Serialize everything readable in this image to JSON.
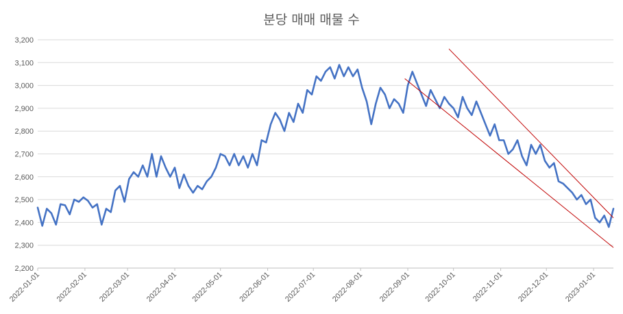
{
  "chart_data": {
    "type": "line",
    "title": "분당 매매 매물 수",
    "xlabel": "",
    "ylabel": "",
    "ylim": [
      2200,
      3200
    ],
    "yticks": [
      2200,
      2300,
      2400,
      2500,
      2600,
      2700,
      2800,
      2900,
      3000,
      3100,
      3200
    ],
    "ytick_labels": [
      "2,200",
      "2,300",
      "2,400",
      "2,500",
      "2,600",
      "2,700",
      "2,800",
      "2,900",
      "3,000",
      "3,100",
      "3,200"
    ],
    "x_start": "2022-01-01",
    "x_end": "2023-01-14",
    "xtick_labels": [
      "2022-01-01",
      "2022-02-01",
      "2022-03-01",
      "2022-04-01",
      "2022-05-01",
      "2022-06-01",
      "2022-07-01",
      "2022-08-01",
      "2022-09-01",
      "2022-10-01",
      "2022-11-01",
      "2022-12-01",
      "2023-01-01"
    ],
    "grid": true,
    "legend": "none",
    "series_color": "#4472C4",
    "trendline_color": "#C00000",
    "series": [
      {
        "x": [
          "2022-01-01",
          "2022-01-04",
          "2022-01-07",
          "2022-01-10",
          "2022-01-13",
          "2022-01-16",
          "2022-01-19",
          "2022-01-22",
          "2022-01-25",
          "2022-01-28",
          "2022-01-31",
          "2022-02-03",
          "2022-02-06",
          "2022-02-09",
          "2022-02-12",
          "2022-02-15",
          "2022-02-18",
          "2022-02-21",
          "2022-02-24",
          "2022-02-27",
          "2022-03-02",
          "2022-03-05",
          "2022-03-08",
          "2022-03-11",
          "2022-03-14",
          "2022-03-17",
          "2022-03-20",
          "2022-03-23",
          "2022-03-26",
          "2022-03-29",
          "2022-04-01",
          "2022-04-04",
          "2022-04-07",
          "2022-04-10",
          "2022-04-13",
          "2022-04-16",
          "2022-04-19",
          "2022-04-22",
          "2022-04-25",
          "2022-04-28",
          "2022-05-01",
          "2022-05-04",
          "2022-05-07",
          "2022-05-10",
          "2022-05-13",
          "2022-05-16",
          "2022-05-19",
          "2022-05-22",
          "2022-05-25",
          "2022-05-28",
          "2022-05-31",
          "2022-06-03",
          "2022-06-06",
          "2022-06-09",
          "2022-06-12",
          "2022-06-15",
          "2022-06-18",
          "2022-06-21",
          "2022-06-24",
          "2022-06-27",
          "2022-06-30",
          "2022-07-03",
          "2022-07-06",
          "2022-07-09",
          "2022-07-12",
          "2022-07-15",
          "2022-07-18",
          "2022-07-21",
          "2022-07-24",
          "2022-07-27",
          "2022-07-30",
          "2022-08-02",
          "2022-08-05",
          "2022-08-08",
          "2022-08-11",
          "2022-08-14",
          "2022-08-17",
          "2022-08-20",
          "2022-08-23",
          "2022-08-26",
          "2022-08-29",
          "2022-09-01",
          "2022-09-04",
          "2022-09-07",
          "2022-09-10",
          "2022-09-13",
          "2022-09-16",
          "2022-09-19",
          "2022-09-22",
          "2022-09-25",
          "2022-09-28",
          "2022-10-01",
          "2022-10-04",
          "2022-10-07",
          "2022-10-10",
          "2022-10-13",
          "2022-10-16",
          "2022-10-19",
          "2022-10-22",
          "2022-10-25",
          "2022-10-28",
          "2022-10-31",
          "2022-11-03",
          "2022-11-06",
          "2022-11-09",
          "2022-11-12",
          "2022-11-15",
          "2022-11-18",
          "2022-11-21",
          "2022-11-24",
          "2022-11-27",
          "2022-11-30",
          "2022-12-03",
          "2022-12-06",
          "2022-12-09",
          "2022-12-12",
          "2022-12-15",
          "2022-12-18",
          "2022-12-21",
          "2022-12-24",
          "2022-12-27",
          "2022-12-30",
          "2023-01-02",
          "2023-01-05",
          "2023-01-08",
          "2023-01-11",
          "2023-01-14"
        ],
        "values": [
          2465,
          2385,
          2460,
          2440,
          2390,
          2480,
          2475,
          2435,
          2500,
          2490,
          2510,
          2495,
          2465,
          2480,
          2390,
          2460,
          2445,
          2540,
          2560,
          2490,
          2590,
          2620,
          2600,
          2650,
          2600,
          2700,
          2600,
          2690,
          2640,
          2600,
          2640,
          2550,
          2610,
          2560,
          2530,
          2560,
          2545,
          2580,
          2600,
          2640,
          2700,
          2690,
          2650,
          2700,
          2650,
          2690,
          2640,
          2700,
          2650,
          2760,
          2750,
          2830,
          2880,
          2850,
          2800,
          2880,
          2840,
          2920,
          2880,
          2980,
          2960,
          3040,
          3020,
          3060,
          3080,
          3030,
          3090,
          3040,
          3080,
          3040,
          3070,
          2990,
          2930,
          2830,
          2920,
          2990,
          2960,
          2900,
          2940,
          2920,
          2880,
          3000,
          3060,
          3010,
          2960,
          2910,
          2980,
          2940,
          2900,
          2950,
          2920,
          2900,
          2860,
          2950,
          2900,
          2870,
          2930,
          2880,
          2830,
          2780,
          2830,
          2760,
          2760,
          2700,
          2720,
          2760,
          2690,
          2650,
          2740,
          2700,
          2740,
          2670,
          2640,
          2660,
          2580,
          2570,
          2550,
          2530,
          2500,
          2520,
          2480,
          2500,
          2420,
          2400,
          2430,
          2380,
          2460
        ]
      }
    ],
    "trendlines": [
      {
        "x": [
          "2022-09-28",
          "2023-01-14"
        ],
        "values": [
          3160,
          2420
        ]
      },
      {
        "x": [
          "2022-08-30",
          "2023-01-14"
        ],
        "values": [
          3030,
          2290
        ]
      }
    ]
  }
}
